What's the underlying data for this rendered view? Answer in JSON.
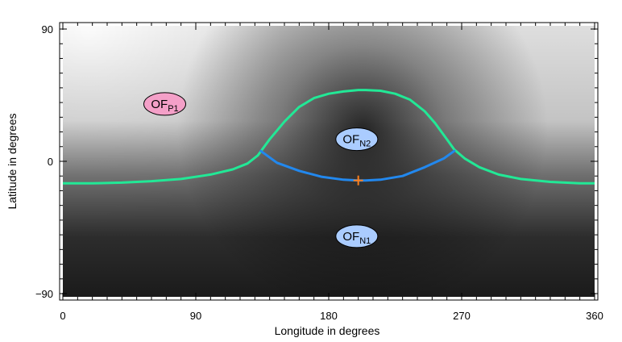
{
  "chart_data": {
    "type": "line",
    "title": "",
    "xlabel": "Longitude in degrees",
    "ylabel": "Latitude in degrees",
    "xlim": [
      0,
      360
    ],
    "ylim": [
      -90,
      90
    ],
    "x_ticks": [
      0,
      90,
      180,
      270,
      360
    ],
    "y_ticks": [
      -90,
      0,
      90
    ],
    "x_tick_labels": [
      "0",
      "90",
      "180",
      "270",
      "360"
    ],
    "y_tick_labels": [
      "−90",
      "0",
      "90"
    ],
    "grid": false,
    "background": "grayscale field, bright near upper-left, dark toward bottom and around center (lon ~205, lat ~15)",
    "series": [
      {
        "color": "#22e896",
        "x": [
          0,
          20,
          40,
          60,
          80,
          100,
          115,
          125,
          132,
          140,
          150,
          160,
          170,
          180,
          190,
          200,
          205,
          215,
          225,
          235,
          245,
          252,
          260,
          265,
          272,
          282,
          295,
          310,
          330,
          350,
          360
        ],
        "y": [
          -15,
          -15,
          -14.5,
          -13.5,
          -12,
          -9,
          -5.5,
          -1.5,
          4,
          15,
          27,
          37,
          43,
          46,
          47.5,
          48.5,
          48.5,
          48,
          46,
          42,
          34,
          26,
          15,
          8,
          2,
          -4,
          -9,
          -12,
          -14,
          -15,
          -15
        ]
      },
      {
        "color": "#2288ee",
        "x": [
          134,
          145,
          160,
          175,
          190,
          200,
          205,
          215,
          230,
          245,
          258,
          265
        ],
        "y": [
          7,
          -1,
          -6.5,
          -10.5,
          -12.5,
          -13,
          -13,
          -12.5,
          -10,
          -4,
          2,
          7
        ]
      }
    ],
    "markers": [
      {
        "x": 200,
        "y": -13,
        "symbol": "+",
        "color": "#ff7f1a"
      }
    ],
    "annotations": [
      {
        "main": "OF",
        "sub": "P1",
        "x": 69,
        "y": 39,
        "fill": "#f4a0c8"
      },
      {
        "main": "OF",
        "sub": "N2",
        "x": 199,
        "y": 15,
        "fill": "#aaccff"
      },
      {
        "main": "OF",
        "sub": "N1",
        "x": 199,
        "y": -51,
        "fill": "#aaccff"
      }
    ]
  }
}
